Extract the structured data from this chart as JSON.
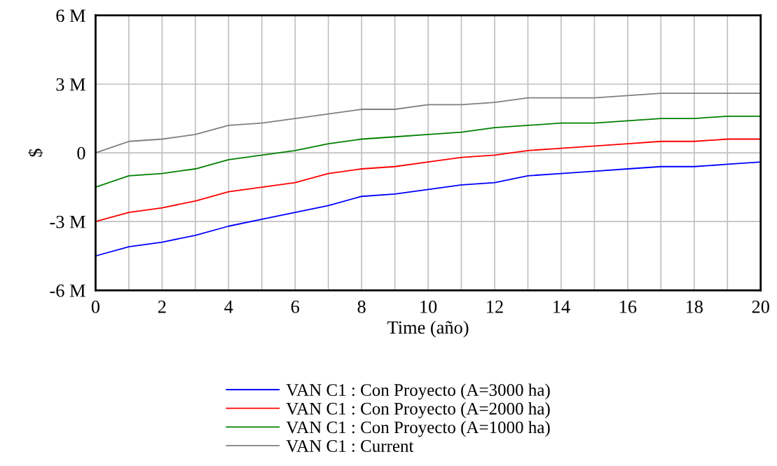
{
  "chart_data": {
    "type": "line",
    "xlabel": "Time (año)",
    "ylabel": "$",
    "x": [
      0,
      1,
      2,
      3,
      4,
      5,
      6,
      7,
      8,
      9,
      10,
      11,
      12,
      13,
      14,
      15,
      16,
      17,
      18,
      19,
      20
    ],
    "xlim": [
      0,
      20
    ],
    "xticks": [
      0,
      {
        "value": 1,
        "label": null
      },
      2,
      {
        "value": 3,
        "label": null
      },
      4,
      {
        "value": 5,
        "label": null
      },
      6,
      {
        "value": 7,
        "label": null
      },
      8,
      {
        "value": 9,
        "label": null
      },
      10,
      {
        "value": 11,
        "label": null
      },
      12,
      {
        "value": 13,
        "label": null
      },
      14,
      {
        "value": 15,
        "label": null
      },
      16,
      {
        "value": 17,
        "label": null
      },
      18,
      {
        "value": 19,
        "label": null
      },
      20
    ],
    "ylim": [
      -6,
      6
    ],
    "yticks": [
      {
        "value": -6,
        "label": "-6 M"
      },
      {
        "value": -3,
        "label": "-3 M"
      },
      0,
      {
        "value": 3,
        "label": "3 M"
      },
      {
        "value": 6,
        "label": "6 M"
      }
    ],
    "grid": true,
    "legend": "bottom",
    "series": [
      {
        "name": "VAN C1 : Con Proyecto (A=3000 ha)",
        "color": "#0000ff",
        "values": [
          -4.5,
          -4.1,
          -3.9,
          -3.6,
          -3.2,
          -2.9,
          -2.6,
          -2.3,
          -1.9,
          -1.8,
          -1.6,
          -1.4,
          -1.3,
          -1.0,
          -0.9,
          -0.8,
          -0.7,
          -0.6,
          -0.6,
          -0.5,
          -0.4
        ]
      },
      {
        "name": "VAN C1 : Con Proyecto (A=2000 ha)",
        "color": "#ff0000",
        "values": [
          -3.0,
          -2.6,
          -2.4,
          -2.1,
          -1.7,
          -1.5,
          -1.3,
          -0.9,
          -0.7,
          -0.6,
          -0.4,
          -0.2,
          -0.1,
          0.1,
          0.2,
          0.3,
          0.4,
          0.5,
          0.5,
          0.6,
          0.6
        ]
      },
      {
        "name": "VAN C1 : Con Proyecto (A=1000 ha)",
        "color": "#008000",
        "values": [
          -1.5,
          -1.0,
          -0.9,
          -0.7,
          -0.3,
          -0.1,
          0.1,
          0.4,
          0.6,
          0.7,
          0.8,
          0.9,
          1.1,
          1.2,
          1.3,
          1.3,
          1.4,
          1.5,
          1.5,
          1.6,
          1.6
        ]
      },
      {
        "name": "VAN C1 : Current",
        "color": "#808080",
        "values": [
          0,
          0.5,
          0.6,
          0.8,
          1.2,
          1.3,
          1.5,
          1.7,
          1.9,
          1.9,
          2.1,
          2.1,
          2.2,
          2.4,
          2.4,
          2.4,
          2.5,
          2.6,
          2.6,
          2.6,
          2.6
        ]
      }
    ]
  }
}
